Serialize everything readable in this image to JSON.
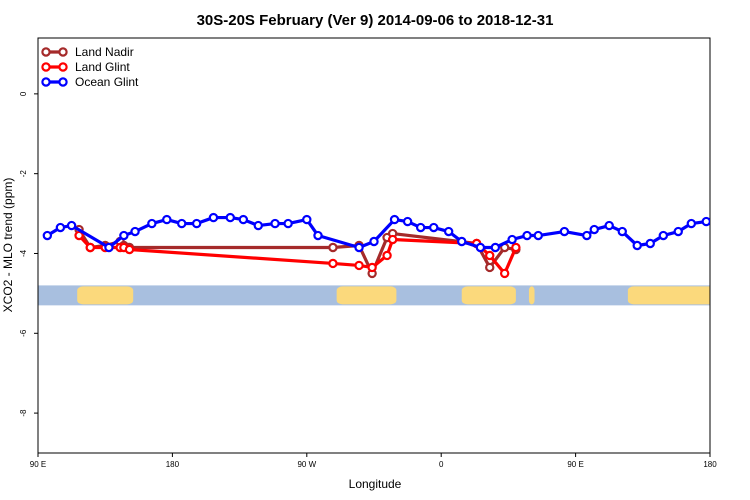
{
  "chart_data": {
    "type": "line",
    "title": "30S-20S February (Ver 9)   2014-09-06 to 2018-12-31",
    "xlabel": "Longitude",
    "ylabel": "XCO2 - MLO trend (ppm)",
    "xlim": [
      90,
      450
    ],
    "ylim": [
      -9,
      1.4
    ],
    "x_ticks": [
      {
        "value": 90,
        "label": "90 E"
      },
      {
        "value": 162,
        "label": "180"
      },
      {
        "value": 234,
        "label": "90 W"
      },
      {
        "value": 306,
        "label": "0"
      },
      {
        "value": 378,
        "label": "90 E"
      },
      {
        "value": 450,
        "label": "180"
      }
    ],
    "y_ticks": [
      {
        "value": 0,
        "label": "0"
      },
      {
        "value": -2,
        "label": "-2"
      },
      {
        "value": -4,
        "label": "-4"
      },
      {
        "value": -6,
        "label": "-6"
      },
      {
        "value": -8,
        "label": "-8"
      }
    ],
    "legend_position": "top-left",
    "land_band": {
      "ymin": -5.3,
      "ymax": -4.8,
      "ocean_color": "#a8bfdf",
      "land_color": "#fbd97c",
      "land_ranges": [
        [
          111,
          141
        ],
        [
          250,
          282
        ],
        [
          317,
          346
        ],
        [
          353,
          356
        ],
        [
          406,
          453
        ]
      ]
    },
    "series": [
      {
        "name": "Land Nadir",
        "color": "#a52a2a",
        "x": [
          112,
          118,
          126,
          134,
          136,
          139,
          248,
          262,
          269,
          277,
          280,
          325,
          332,
          340,
          346
        ],
        "y": [
          -3.4,
          -3.85,
          -3.8,
          -3.7,
          -3.8,
          -3.85,
          -3.85,
          -3.8,
          -4.5,
          -3.6,
          -3.5,
          -3.75,
          -4.35,
          -3.85,
          -3.9
        ]
      },
      {
        "name": "Land Glint",
        "color": "#ff0000",
        "x": [
          112,
          118,
          126,
          134,
          136,
          139,
          248,
          262,
          269,
          277,
          280,
          325,
          332,
          340,
          346
        ],
        "y": [
          -3.55,
          -3.85,
          -3.85,
          -3.85,
          -3.85,
          -3.9,
          -4.25,
          -4.3,
          -4.35,
          -4.05,
          -3.65,
          -3.75,
          -4.05,
          -4.5,
          -3.85
        ]
      },
      {
        "name": "Ocean Glint",
        "color": "#0000ff",
        "x": [
          95,
          102,
          108,
          128,
          136,
          142,
          151,
          159,
          167,
          175,
          184,
          193,
          200,
          208,
          217,
          224,
          234,
          240,
          262,
          270,
          281,
          288,
          295,
          302,
          310,
          317,
          327,
          335,
          344,
          352,
          358,
          372,
          384,
          388,
          396,
          403,
          411,
          418,
          425,
          433,
          440,
          448
        ],
        "y": [
          -3.55,
          -3.35,
          -3.3,
          -3.85,
          -3.55,
          -3.45,
          -3.25,
          -3.15,
          -3.25,
          -3.25,
          -3.1,
          -3.1,
          -3.15,
          -3.3,
          -3.25,
          -3.25,
          -3.15,
          -3.55,
          -3.85,
          -3.7,
          -3.15,
          -3.2,
          -3.35,
          -3.35,
          -3.45,
          -3.7,
          -3.85,
          -3.85,
          -3.65,
          -3.55,
          -3.55,
          -3.45,
          -3.55,
          -3.4,
          -3.3,
          -3.45,
          -3.8,
          -3.75,
          -3.55,
          -3.45,
          -3.25,
          -3.2
        ]
      }
    ]
  }
}
